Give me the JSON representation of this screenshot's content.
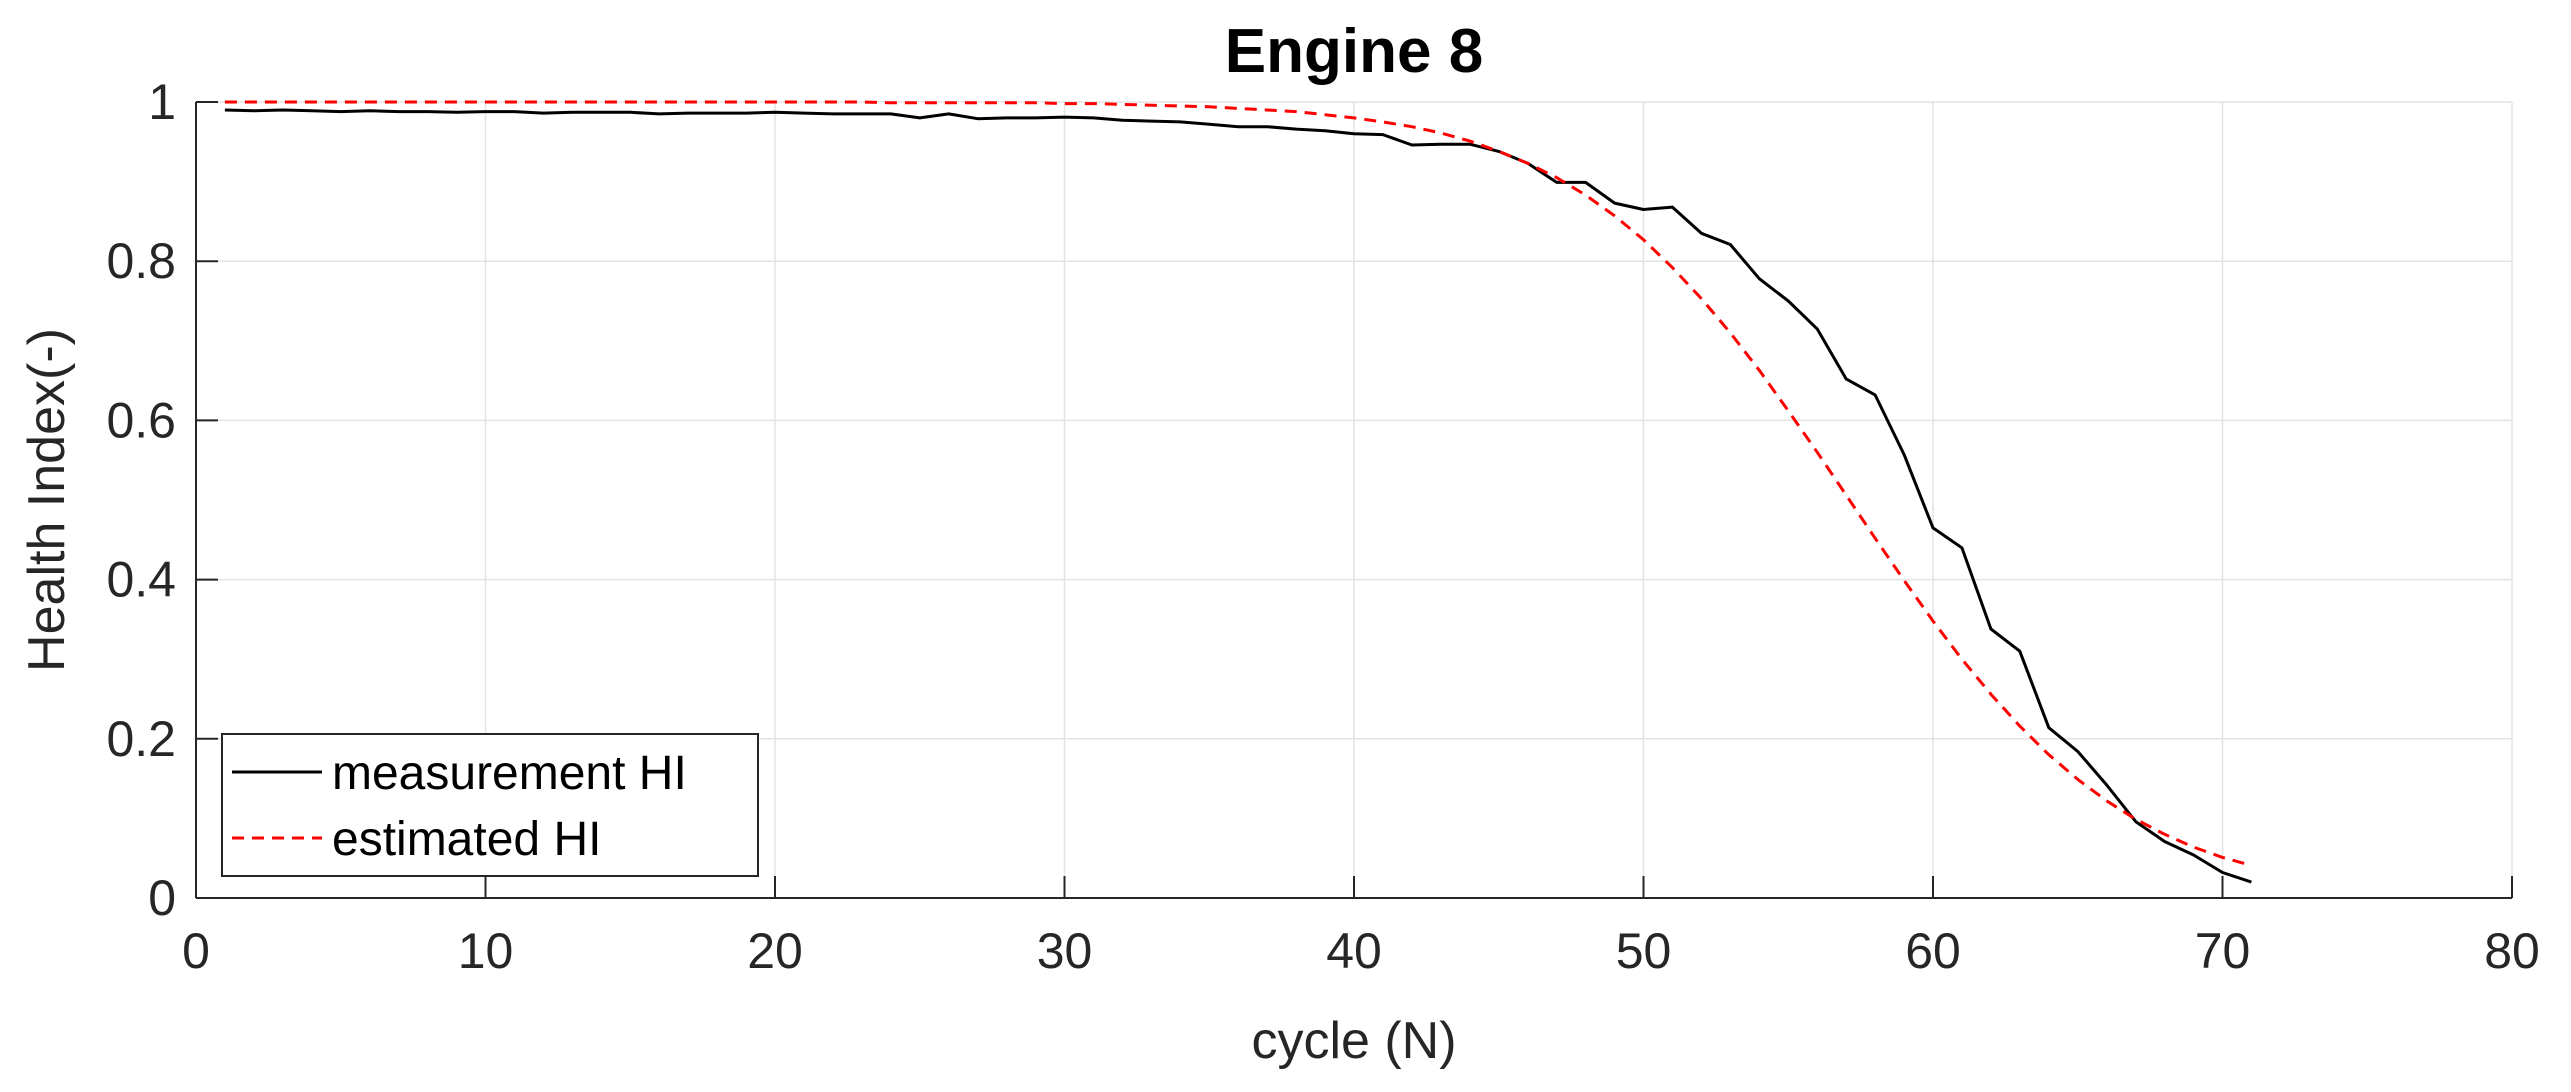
{
  "chart_data": {
    "type": "line",
    "title": "Engine 8",
    "xlabel": "cycle (N)",
    "ylabel": "Health Index(-)",
    "xlim": [
      0,
      80
    ],
    "ylim": [
      0,
      1
    ],
    "xticks": [
      0,
      10,
      20,
      30,
      40,
      50,
      60,
      70,
      80
    ],
    "yticks": [
      0,
      0.2,
      0.4,
      0.6,
      0.8,
      1
    ],
    "xtick_labels": [
      "0",
      "10",
      "20",
      "30",
      "40",
      "50",
      "60",
      "70",
      "80"
    ],
    "ytick_labels": [
      "0",
      "0.2",
      "0.4",
      "0.6",
      "0.8",
      "1"
    ],
    "grid": true,
    "legend_position": "bottom-left",
    "series": [
      {
        "name": "measurement HI",
        "color": "#000000",
        "style": "solid",
        "x": [
          1,
          2,
          3,
          4,
          5,
          6,
          7,
          8,
          9,
          10,
          11,
          12,
          13,
          14,
          15,
          16,
          17,
          18,
          19,
          20,
          21,
          22,
          23,
          24,
          25,
          26,
          27,
          28,
          29,
          30,
          31,
          32,
          33,
          34,
          35,
          36,
          37,
          38,
          39,
          40,
          41,
          42,
          43,
          44,
          45,
          46,
          47,
          48,
          49,
          50,
          51,
          52,
          53,
          54,
          55,
          56,
          57,
          58,
          59,
          60,
          61,
          62,
          63,
          64,
          65,
          66,
          67,
          68,
          69,
          70,
          71
        ],
        "y": [
          0.99,
          0.989,
          0.99,
          0.989,
          0.988,
          0.989,
          0.988,
          0.988,
          0.987,
          0.988,
          0.988,
          0.986,
          0.987,
          0.987,
          0.987,
          0.985,
          0.986,
          0.986,
          0.986,
          0.987,
          0.986,
          0.985,
          0.985,
          0.985,
          0.98,
          0.985,
          0.979,
          0.98,
          0.98,
          0.981,
          0.98,
          0.977,
          0.976,
          0.975,
          0.972,
          0.969,
          0.969,
          0.966,
          0.964,
          0.96,
          0.959,
          0.946,
          0.947,
          0.947,
          0.938,
          0.923,
          0.899,
          0.899,
          0.873,
          0.865,
          0.868,
          0.835,
          0.821,
          0.778,
          0.75,
          0.715,
          0.652,
          0.632,
          0.557,
          0.465,
          0.44,
          0.338,
          0.31,
          0.214,
          0.184,
          0.142,
          0.096,
          0.071,
          0.054,
          0.032,
          0.02
        ]
      },
      {
        "name": "estimated HI",
        "color": "#ff0000",
        "style": "dashed",
        "x": [
          1,
          2,
          3,
          4,
          5,
          6,
          7,
          8,
          9,
          10,
          11,
          12,
          13,
          14,
          15,
          16,
          17,
          18,
          19,
          20,
          21,
          22,
          23,
          24,
          25,
          26,
          27,
          28,
          29,
          30,
          31,
          32,
          33,
          34,
          35,
          36,
          37,
          38,
          39,
          40,
          41,
          42,
          43,
          44,
          45,
          46,
          47,
          48,
          49,
          50,
          51,
          52,
          53,
          54,
          55,
          56,
          57,
          58,
          59,
          60,
          61,
          62,
          63,
          64,
          65,
          66,
          67,
          68,
          69,
          70,
          71
        ],
        "y": [
          1.0,
          1.0,
          1.0,
          1.0,
          1.0,
          1.0,
          1.0,
          1.0,
          1.0,
          1.0,
          1.0,
          1.0,
          1.0,
          1.0,
          1.0,
          1.0,
          1.0,
          1.0,
          1.0,
          1.0,
          1.0,
          1.0,
          1.0,
          0.999,
          0.999,
          0.999,
          0.999,
          0.999,
          0.999,
          0.998,
          0.998,
          0.997,
          0.996,
          0.995,
          0.994,
          0.992,
          0.99,
          0.988,
          0.984,
          0.98,
          0.975,
          0.969,
          0.961,
          0.951,
          0.938,
          0.923,
          0.905,
          0.883,
          0.857,
          0.827,
          0.792,
          0.753,
          0.71,
          0.663,
          0.612,
          0.56,
          0.506,
          0.452,
          0.399,
          0.348,
          0.3,
          0.256,
          0.216,
          0.18,
          0.149,
          0.122,
          0.099,
          0.08,
          0.064,
          0.051,
          0.041
        ]
      }
    ]
  }
}
